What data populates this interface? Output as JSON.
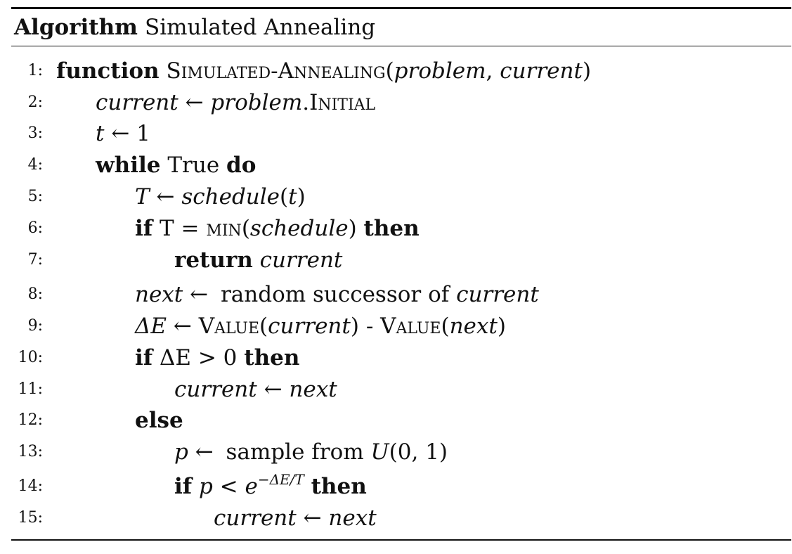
{
  "algorithm": {
    "caption_label": "Algorithm",
    "caption_name": "Simulated Annealing",
    "lines": [
      {
        "num": "1:",
        "kw_function": "function",
        "name": "Simulated-Annealing",
        "open": "(",
        "arg1": "problem",
        "comma": ", ",
        "arg2": "current",
        "close": ")"
      },
      {
        "num": "2:",
        "lhs": "current",
        "arrow": " ← ",
        "obj": "problem",
        "dot": ".",
        "member": "Initial"
      },
      {
        "num": "3:",
        "lhs": "t",
        "arrow": " ← ",
        "rhs": "1"
      },
      {
        "num": "4:",
        "kw_while": "while",
        "cond": "True",
        "kw_do": "do"
      },
      {
        "num": "5:",
        "lhs": "T",
        "arrow": " ← ",
        "fn": "schedule",
        "open": "(",
        "arg": "t",
        "close": ")"
      },
      {
        "num": "6:",
        "kw_if": "if",
        "cond_a": "T = ",
        "fn": "min",
        "open": "(",
        "arg": "schedule",
        "close": ")",
        "kw_then": "then"
      },
      {
        "num": "7:",
        "kw_return": "return",
        "value": "current"
      },
      {
        "num": "8:",
        "lhs": "next",
        "arrow": " ← ",
        "rhs_a": "random successor of ",
        "rhs_b": "current"
      },
      {
        "num": "9:",
        "lhs": "ΔE",
        "arrow": " ← ",
        "fn1": "Value",
        "open1": "(",
        "arg1": "current",
        "close1": ")",
        "minus": " - ",
        "fn2": "Value",
        "open2": "(",
        "arg2": "next",
        "close2": ")"
      },
      {
        "num": "10:",
        "kw_if": "if",
        "cond": "ΔE > 0",
        "kw_then": "then"
      },
      {
        "num": "11:",
        "lhs": "current",
        "arrow": " ← ",
        "rhs": "next"
      },
      {
        "num": "12:",
        "kw_else": "else"
      },
      {
        "num": "13:",
        "lhs": "p",
        "arrow": " ← ",
        "rhs_a": "sample from ",
        "rhs_b": "U",
        "rhs_c": "(0, 1)"
      },
      {
        "num": "14:",
        "kw_if": "if",
        "cond_a": "p < e",
        "cond_exp": "−ΔE/T",
        "kw_then": "then"
      },
      {
        "num": "15:",
        "lhs": "current",
        "arrow": " ← ",
        "rhs": "next"
      }
    ]
  }
}
